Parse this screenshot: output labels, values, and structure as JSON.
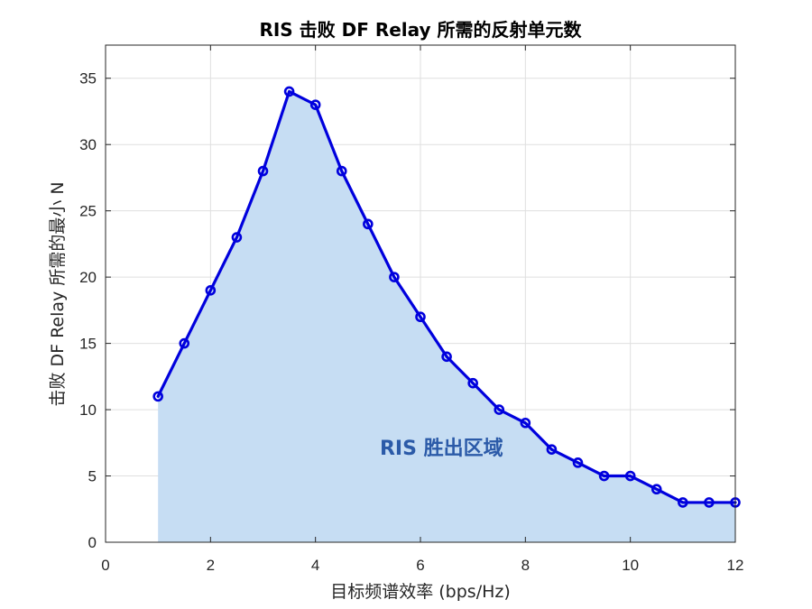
{
  "chart_data": {
    "type": "area",
    "title": "RIS 击败 DF Relay 所需的反射单元数",
    "xlabel": "目标频谱效率 (bps/Hz)",
    "ylabel": "击败 DF Relay 所需的最小 N",
    "xlim": [
      0,
      12
    ],
    "ylim": [
      0,
      37.5
    ],
    "xticks": [
      0,
      2,
      4,
      6,
      8,
      10,
      12
    ],
    "yticks": [
      0,
      5,
      10,
      15,
      20,
      25,
      30,
      35
    ],
    "grid": true,
    "x": [
      1,
      1.5,
      2,
      2.5,
      3,
      3.5,
      4,
      4.5,
      5,
      5.5,
      6,
      6.5,
      7,
      7.5,
      8,
      8.5,
      9,
      9.5,
      10,
      10.5,
      11,
      11.5,
      12
    ],
    "series": [
      {
        "values": [
          11,
          15,
          19,
          23,
          28,
          34,
          33,
          28,
          24,
          20,
          17,
          14,
          12,
          10,
          9,
          7,
          6,
          5,
          5,
          4,
          3,
          3,
          3
        ],
        "line_color": "#0000dd",
        "fill_color": "#c6ddf3",
        "marker": "circle"
      }
    ],
    "annotations": [
      {
        "text": "RIS 胜出区域",
        "x": 6.4,
        "y": 7,
        "color": "#2b5aa8"
      }
    ]
  }
}
